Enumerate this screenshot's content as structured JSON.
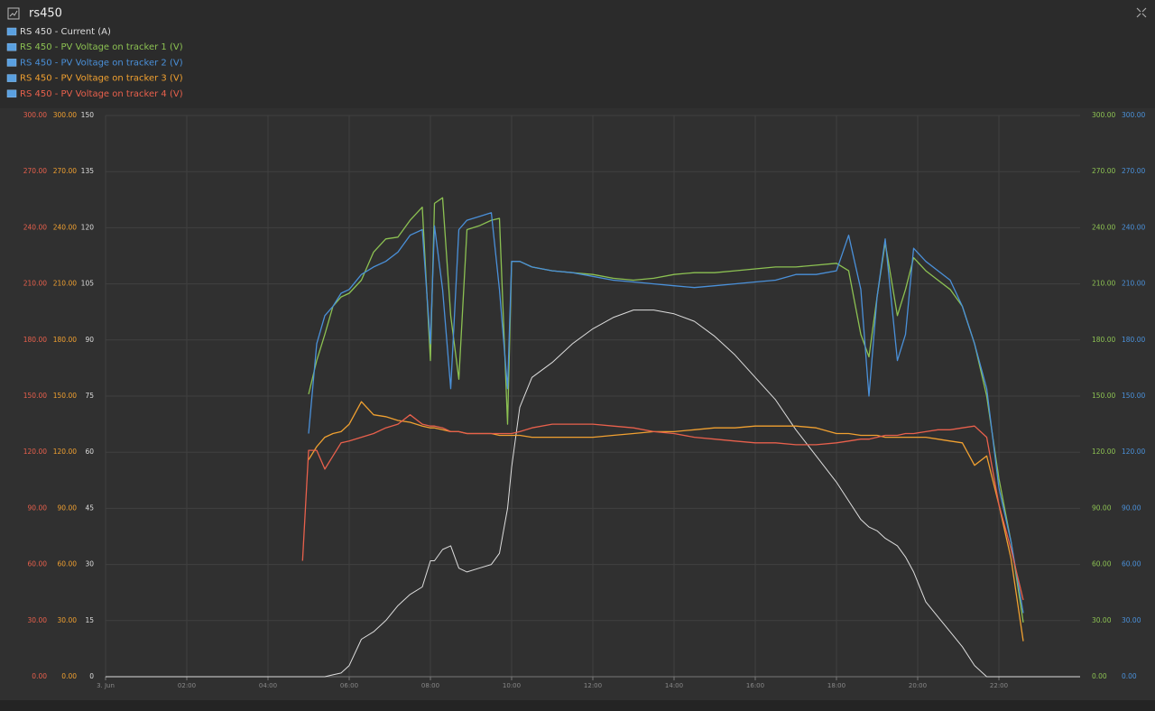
{
  "chart_data": {
    "type": "line",
    "title": "rs450",
    "x": [
      0,
      4.85,
      5.0,
      5.2,
      5.4,
      5.6,
      5.8,
      6.0,
      6.3,
      6.6,
      6.9,
      7.2,
      7.5,
      7.8,
      8.0,
      8.1,
      8.3,
      8.5,
      8.7,
      8.9,
      9.2,
      9.5,
      9.7,
      9.9,
      10.0,
      10.2,
      10.5,
      11,
      11.5,
      12,
      12.5,
      13,
      13.5,
      14,
      14.5,
      15,
      15.5,
      16,
      16.5,
      17,
      17.5,
      18,
      18.3,
      18.6,
      18.8,
      19.0,
      19.2,
      19.5,
      19.7,
      19.9,
      20.2,
      20.5,
      20.8,
      21.1,
      21.4,
      21.7,
      22.0,
      22.3,
      22.6,
      24
    ],
    "xlim": [
      0,
      24
    ],
    "xticks": [
      {
        "value": 0,
        "label": "3. Jun"
      },
      {
        "value": 2,
        "label": "02:00"
      },
      {
        "value": 4,
        "label": "04:00"
      },
      {
        "value": 6,
        "label": "06:00"
      },
      {
        "value": 8,
        "label": "08:00"
      },
      {
        "value": 10,
        "label": "10:00"
      },
      {
        "value": 12,
        "label": "12:00"
      },
      {
        "value": 14,
        "label": "14:00"
      },
      {
        "value": 16,
        "label": "16:00"
      },
      {
        "value": 18,
        "label": "18:00"
      },
      {
        "value": 20,
        "label": "20:00"
      },
      {
        "value": 22,
        "label": "22:00"
      }
    ],
    "grid": true,
    "axes": [
      {
        "side": "left",
        "color": "#e8604c",
        "lim": [
          0,
          300
        ],
        "ticks": [
          {
            "value": 0,
            "label": "0.00"
          },
          {
            "value": 30,
            "label": "30.00"
          },
          {
            "value": 60,
            "label": "60.00"
          },
          {
            "value": 90,
            "label": "90.00"
          },
          {
            "value": 120,
            "label": "120.00"
          },
          {
            "value": 150,
            "label": "150.00"
          },
          {
            "value": 180,
            "label": "180.00"
          },
          {
            "value": 210,
            "label": "210.00"
          },
          {
            "value": 240,
            "label": "240.00"
          },
          {
            "value": 270,
            "label": "270.00"
          },
          {
            "value": 300,
            "label": "300.00"
          }
        ]
      },
      {
        "side": "left",
        "color": "#f0a030",
        "lim": [
          0,
          300
        ],
        "ticks": [
          {
            "value": 0,
            "label": "0.00"
          },
          {
            "value": 30,
            "label": "30.00"
          },
          {
            "value": 60,
            "label": "60.00"
          },
          {
            "value": 90,
            "label": "90.00"
          },
          {
            "value": 120,
            "label": "120.00"
          },
          {
            "value": 150,
            "label": "150.00"
          },
          {
            "value": 180,
            "label": "180.00"
          },
          {
            "value": 210,
            "label": "210.00"
          },
          {
            "value": 240,
            "label": "240.00"
          },
          {
            "value": 270,
            "label": "270.00"
          },
          {
            "value": 300,
            "label": "300.00"
          }
        ]
      },
      {
        "side": "left",
        "color": "#dddddd",
        "lim": [
          0,
          150
        ],
        "ticks": [
          0,
          15,
          30,
          45,
          60,
          75,
          90,
          105,
          120,
          135,
          150
        ]
      },
      {
        "side": "right",
        "color": "#8cc152",
        "lim": [
          0,
          300
        ],
        "ticks": [
          {
            "value": 0,
            "label": "0.00"
          },
          {
            "value": 30,
            "label": "30.00"
          },
          {
            "value": 60,
            "label": "60.00"
          },
          {
            "value": 90,
            "label": "90.00"
          },
          {
            "value": 120,
            "label": "120.00"
          },
          {
            "value": 150,
            "label": "150.00"
          },
          {
            "value": 180,
            "label": "180.00"
          },
          {
            "value": 210,
            "label": "210.00"
          },
          {
            "value": 240,
            "label": "240.00"
          },
          {
            "value": 270,
            "label": "270.00"
          },
          {
            "value": 300,
            "label": "300.00"
          }
        ]
      },
      {
        "side": "right",
        "color": "#4a90d9",
        "lim": [
          0,
          300
        ],
        "ticks": [
          {
            "value": 0,
            "label": "0.00"
          },
          {
            "value": 30,
            "label": "30.00"
          },
          {
            "value": 60,
            "label": "60.00"
          },
          {
            "value": 90,
            "label": "90.00"
          },
          {
            "value": 120,
            "label": "120.00"
          },
          {
            "value": 150,
            "label": "150.00"
          },
          {
            "value": 180,
            "label": "180.00"
          },
          {
            "value": 210,
            "label": "210.00"
          },
          {
            "value": 240,
            "label": "240.00"
          },
          {
            "value": 270,
            "label": "270.00"
          },
          {
            "value": 300,
            "label": "300.00"
          }
        ]
      }
    ],
    "series": [
      {
        "name": "RS 450 - Current (A)",
        "color": "#dddddd",
        "axis": 2,
        "values": [
          0,
          0,
          0,
          0,
          0,
          0.5,
          1,
          3,
          10,
          12,
          15,
          19,
          22,
          24,
          31,
          31,
          34,
          35,
          29,
          28,
          29,
          30,
          33,
          45,
          56,
          72,
          80,
          84,
          89,
          93,
          96,
          98,
          98,
          97,
          95,
          91,
          86,
          80,
          74,
          66,
          59,
          52,
          47,
          42,
          40,
          39,
          37,
          35,
          32,
          28,
          20,
          16,
          12,
          8,
          3,
          0,
          0,
          0,
          0,
          0
        ]
      },
      {
        "name": "RS 450 - PV Voltage on tracker 1 (V)",
        "color": "#8cc152",
        "axis": 3,
        "values": [
          null,
          null,
          151,
          169,
          183,
          198,
          203,
          205,
          212,
          227,
          234,
          235,
          244,
          251,
          169,
          253,
          256,
          193,
          159,
          239,
          241,
          244,
          245,
          135,
          222,
          222,
          219,
          217,
          216,
          215,
          213,
          212,
          213,
          215,
          216,
          216,
          217,
          218,
          219,
          219,
          220,
          221,
          217,
          183,
          171,
          203,
          232,
          193,
          207,
          224,
          217,
          212,
          207,
          198,
          178,
          150,
          106,
          72,
          29,
          null
        ]
      },
      {
        "name": "RS 450 - PV Voltage on tracker 2 (V)",
        "color": "#4a90d9",
        "axis": 4,
        "values": [
          null,
          null,
          130,
          178,
          193,
          198,
          205,
          207,
          215,
          219,
          222,
          227,
          236,
          239,
          178,
          241,
          207,
          154,
          239,
          244,
          246,
          248,
          207,
          154,
          222,
          222,
          219,
          217,
          216,
          214,
          212,
          211,
          210,
          209,
          208,
          209,
          210,
          211,
          212,
          215,
          215,
          217,
          236,
          207,
          150,
          203,
          234,
          169,
          183,
          229,
          222,
          217,
          212,
          198,
          178,
          154,
          101,
          72,
          34,
          null
        ]
      },
      {
        "name": "RS 450 - PV Voltage on tracker 3 (V)",
        "color": "#f0a030",
        "axis": 1,
        "values": [
          null,
          null,
          116,
          123,
          128,
          130,
          131,
          135,
          147,
          140,
          139,
          137,
          136,
          134,
          133,
          133,
          132,
          131,
          131,
          130,
          130,
          130,
          129,
          129,
          129,
          129,
          128,
          128,
          128,
          128,
          129,
          130,
          131,
          131,
          132,
          133,
          133,
          134,
          134,
          134,
          133,
          130,
          130,
          129,
          129,
          129,
          128,
          128,
          128,
          128,
          128,
          127,
          126,
          125,
          113,
          118,
          92,
          63,
          19,
          null
        ]
      },
      {
        "name": "RS 450 - PV Voltage on tracker 4 (V)",
        "color": "#e8604c",
        "axis": 0,
        "values": [
          null,
          62,
          121,
          121,
          111,
          118,
          125,
          126,
          128,
          130,
          133,
          135,
          140,
          135,
          134,
          134,
          133,
          131,
          131,
          130,
          130,
          130,
          130,
          130,
          130,
          131,
          133,
          135,
          135,
          135,
          134,
          133,
          131,
          130,
          128,
          127,
          126,
          125,
          125,
          124,
          124,
          125,
          126,
          127,
          127,
          128,
          129,
          129,
          130,
          130,
          131,
          132,
          132,
          133,
          134,
          128,
          92,
          68,
          41,
          null
        ]
      }
    ]
  }
}
